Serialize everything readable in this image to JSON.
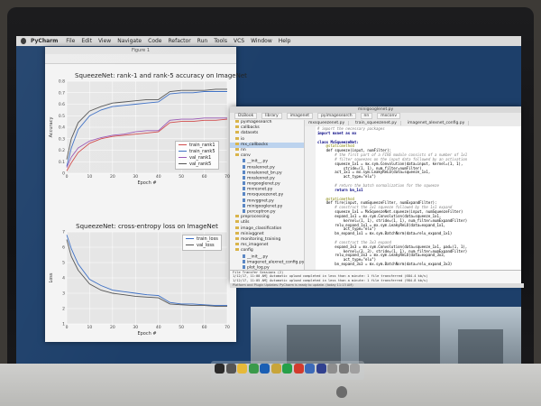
{
  "menubar": {
    "app": "PyCharm",
    "items": [
      "File",
      "Edit",
      "View",
      "Navigate",
      "Code",
      "Refactor",
      "Run",
      "Tools",
      "VCS",
      "Window",
      "Help"
    ]
  },
  "figure_window": {
    "title": "Figure 1"
  },
  "chart_data": [
    {
      "type": "line",
      "title": "SqueezeNet: rank-1 and rank-5 accuracy on ImageNet",
      "xlabel": "Epoch #",
      "ylabel": "Accuracy",
      "xlim": [
        0,
        70
      ],
      "ylim": [
        0.0,
        0.8
      ],
      "x_ticks": [
        0,
        10,
        20,
        30,
        40,
        50,
        60,
        70
      ],
      "y_ticks": [
        0.0,
        0.1,
        0.2,
        0.3,
        0.4,
        0.5,
        0.6,
        0.7,
        0.8
      ],
      "grid": true,
      "legend": "lower-right",
      "x": [
        0,
        2,
        5,
        10,
        15,
        20,
        25,
        30,
        35,
        40,
        45,
        50,
        55,
        60,
        65,
        70
      ],
      "series": [
        {
          "name": "train_rank1",
          "color": "#d14b4b",
          "values": [
            0.02,
            0.09,
            0.18,
            0.26,
            0.3,
            0.32,
            0.33,
            0.34,
            0.35,
            0.36,
            0.44,
            0.45,
            0.45,
            0.46,
            0.46,
            0.47
          ]
        },
        {
          "name": "train_rank5",
          "color": "#3b6ec4",
          "values": [
            0.06,
            0.22,
            0.38,
            0.5,
            0.55,
            0.58,
            0.59,
            0.6,
            0.61,
            0.62,
            0.69,
            0.7,
            0.7,
            0.71,
            0.71,
            0.71
          ]
        },
        {
          "name": "val_rank1",
          "color": "#9a58b5",
          "values": [
            0.05,
            0.14,
            0.22,
            0.28,
            0.31,
            0.33,
            0.34,
            0.36,
            0.37,
            0.37,
            0.46,
            0.47,
            0.47,
            0.48,
            0.48,
            0.48
          ]
        },
        {
          "name": "val_rank5",
          "color": "#555555",
          "values": [
            0.12,
            0.3,
            0.44,
            0.54,
            0.58,
            0.61,
            0.62,
            0.63,
            0.64,
            0.64,
            0.71,
            0.72,
            0.72,
            0.72,
            0.73,
            0.73
          ]
        }
      ]
    },
    {
      "type": "line",
      "title": "SqueezeNet: cross-entropy loss on ImageNet",
      "xlabel": "Epoch #",
      "ylabel": "Loss",
      "xlim": [
        0,
        70
      ],
      "ylim": [
        1.0,
        7.0
      ],
      "x_ticks": [
        0,
        10,
        20,
        30,
        40,
        50,
        60,
        70
      ],
      "y_ticks": [
        1,
        2,
        3,
        4,
        5,
        6,
        7
      ],
      "grid": true,
      "legend": "top-right",
      "x": [
        0,
        2,
        5,
        10,
        15,
        20,
        25,
        30,
        35,
        40,
        45,
        50,
        55,
        60,
        65,
        70
      ],
      "series": [
        {
          "name": "train_loss",
          "color": "#3b6ec4",
          "values": [
            6.8,
            5.9,
            4.9,
            3.9,
            3.5,
            3.2,
            3.1,
            3.0,
            2.9,
            2.85,
            2.4,
            2.3,
            2.3,
            2.25,
            2.2,
            2.2
          ]
        },
        {
          "name": "val_loss",
          "color": "#555555",
          "values": [
            6.5,
            5.4,
            4.5,
            3.6,
            3.2,
            3.0,
            2.9,
            2.8,
            2.75,
            2.7,
            2.3,
            2.25,
            2.2,
            2.2,
            2.15,
            2.15
          ]
        }
      ]
    }
  ],
  "pycharm": {
    "window_title": "minigooglenet.py",
    "nav_tabs": [
      "DLBook",
      "library",
      "imagenet",
      "pyimagesearch",
      "nn",
      "mxconv"
    ],
    "editor_tabs": [
      "mxsqueezenet.py",
      "train_squeezenet.py",
      "imagenet_alexnet_config.py"
    ],
    "project_tree": [
      {
        "label": "pyimagesearch",
        "type": "folder",
        "selected": false
      },
      {
        "label": "callbacks",
        "type": "folder",
        "selected": false
      },
      {
        "label": "datasets",
        "type": "folder",
        "selected": false
      },
      {
        "label": "io",
        "type": "folder",
        "selected": false
      },
      {
        "label": "mx_callbacks",
        "type": "folder",
        "selected": true
      },
      {
        "label": "nn",
        "type": "folder",
        "selected": false
      },
      {
        "label": "conv",
        "type": "folder",
        "selected": false
      },
      {
        "label": "__init__.py",
        "type": "file",
        "selected": false
      },
      {
        "label": "mxalexnet.py",
        "type": "file",
        "selected": false
      },
      {
        "label": "mxalexnet_bn.py",
        "type": "file",
        "selected": false
      },
      {
        "label": "mxalexnet.py",
        "type": "file",
        "selected": false
      },
      {
        "label": "mxgooglenet.py",
        "type": "file",
        "selected": false
      },
      {
        "label": "mxresnet.py",
        "type": "file",
        "selected": false
      },
      {
        "label": "mxsqueezenet.py",
        "type": "file",
        "selected": false
      },
      {
        "label": "mxvggnet.py",
        "type": "file",
        "selected": false
      },
      {
        "label": "minigooglenet.py",
        "type": "file",
        "selected": false
      },
      {
        "label": "perceptron.py",
        "type": "file",
        "selected": false
      },
      {
        "label": "preprocessing",
        "type": "folder",
        "selected": false
      },
      {
        "label": "utils",
        "type": "folder",
        "selected": false
      },
      {
        "label": "image_classification",
        "type": "folder",
        "selected": false
      },
      {
        "label": "minivggnet",
        "type": "folder",
        "selected": false
      },
      {
        "label": "monitoring_training",
        "type": "folder",
        "selected": false
      },
      {
        "label": "ms_imagenet",
        "type": "folder",
        "selected": false
      },
      {
        "label": "config",
        "type": "folder",
        "selected": false
      },
      {
        "label": "__init__.py",
        "type": "file",
        "selected": false
      },
      {
        "label": "imagenet_alexnet_config.py",
        "type": "file",
        "selected": false
      },
      {
        "label": "plot_log.py",
        "type": "file",
        "selected": false
      },
      {
        "label": "plot_learning_rate.py",
        "type": "file",
        "selected": false
      },
      {
        "label": "test_alexnet.py",
        "type": "file",
        "selected": false
      },
      {
        "label": "train_alexnet.py",
        "type": "file",
        "selected": false
      },
      {
        "label": "ms_imagenet_squeezenet",
        "type": "folder",
        "selected": false
      },
      {
        "label": "config",
        "type": "folder",
        "selected": false
      },
      {
        "label": "__init__.py",
        "type": "file",
        "selected": false
      },
      {
        "label": "imagenet_squeezenet_config.py",
        "type": "file",
        "selected": false
      }
    ],
    "code_lines": [
      {
        "kind": "cm",
        "text": "# import the necessary packages"
      },
      {
        "kind": "kw",
        "text": "import mxnet as mx"
      },
      {
        "kind": "plain",
        "text": ""
      },
      {
        "kind": "kw",
        "text": "class MxSqueezeNet:"
      },
      {
        "kind": "dec",
        "text": "    @staticmethod"
      },
      {
        "kind": "plain",
        "text": "    def squeeze(input, numFilter):"
      },
      {
        "kind": "cm",
        "text": "        # the first part of a FIRE module consists of a number of 1x1"
      },
      {
        "kind": "cm",
        "text": "        # filter squeezes on the input data followed by an activation"
      },
      {
        "kind": "plain",
        "text": "        squeeze_1x1 = mx.sym.Convolution(data=input, kernel=(1, 1),"
      },
      {
        "kind": "plain",
        "text": "            stride=(1, 1), num_filter=numFilter)"
      },
      {
        "kind": "plain",
        "text": "        act_1x1 = mx.sym.LeakyReLU(data=squeeze_1x1,"
      },
      {
        "kind": "plain",
        "text": "            act_type=\"elu\")"
      },
      {
        "kind": "plain",
        "text": ""
      },
      {
        "kind": "cm",
        "text": "        # return the batch normalization for the squeeze"
      },
      {
        "kind": "kw",
        "text": "        return bn_1x1"
      },
      {
        "kind": "plain",
        "text": ""
      },
      {
        "kind": "dec",
        "text": "    @staticmethod"
      },
      {
        "kind": "plain",
        "text": "    def fire(input, numSqueezeFilter, numExpandFilter):"
      },
      {
        "kind": "cm",
        "text": "        # construct the 1x1 squeeze followed by the 1x1 expand"
      },
      {
        "kind": "plain",
        "text": "        squeeze_1x1 = MxSqueezeNet.squeeze(input, numSqueezeFilter)"
      },
      {
        "kind": "plain",
        "text": "        expand_1x1 = mx.sym.Convolution(data=squeeze_1x1,"
      },
      {
        "kind": "plain",
        "text": "            kernel=(1, 1), stride=(1, 1), num_filter=numExpandFilter)"
      },
      {
        "kind": "plain",
        "text": "        relu_expand_1x1 = mx.sym.LeakyReLU(data=expand_1x1,"
      },
      {
        "kind": "plain",
        "text": "            act_type=\"elu\")"
      },
      {
        "kind": "plain",
        "text": "        bn_expand_1x1 = mx.sym.BatchNorm(data=relu_expand_1x1)"
      },
      {
        "kind": "plain",
        "text": ""
      },
      {
        "kind": "cm",
        "text": "        # construct the 3x3 expand"
      },
      {
        "kind": "plain",
        "text": "        expand_3x3 = mx.sym.Convolution(data=squeeze_1x1, pad=(1, 1),"
      },
      {
        "kind": "plain",
        "text": "            kernel=(3, 3), stride=(1, 1), num_filter=numExpandFilter)"
      },
      {
        "kind": "plain",
        "text": "        relu_expand_3x3 = mx.sym.LeakyReLU(data=expand_3x3,"
      },
      {
        "kind": "plain",
        "text": "            act_type=\"elu\")"
      },
      {
        "kind": "plain",
        "text": "        bn_expand_3x3 = mx.sym.BatchNorm(data=relu_expand_3x3)"
      },
      {
        "kind": "plain",
        "text": ""
      },
      {
        "kind": "cm",
        "text": "        # the output of the FIRE module is the concatenation of the"
      },
      {
        "kind": "cm",
        "text": "        # batch normalized activations for the 1x1 and 3x3 expands"
      },
      {
        "kind": "cm",
        "text": "        # along the channel dimension"
      },
      {
        "kind": "plain",
        "text": "        output = mx.sym.Concat(bn_expand_1x1, bn_expand_3x3,"
      },
      {
        "kind": "plain",
        "text": "            dim=1)"
      },
      {
        "kind": "plain",
        "text": ""
      },
      {
        "kind": "cm",
        "text": "        # return the output of the FIRE module"
      },
      {
        "kind": "kw",
        "text": "        return output"
      }
    ],
    "run_lines": [
      "File Transfer Sessions (2)",
      "1/12/17, 11:00 AM] Automatic upload completed in less than a minute: 1 file transferred (684.4 kb/s)",
      "1/12/17, 11:05 AM] Automatic upload completed in less than a minute: 1 file transferred (984.8 kb/s)"
    ],
    "status": "Platform and Plugin Updates: PyCharm is ready to update. (today 11:13 AM)"
  },
  "dock": {
    "icon_colors": [
      "#2b2b2b",
      "#555555",
      "#e6b93a",
      "#3a9a4b",
      "#1a5fb4",
      "#c8a53a",
      "#26a04a",
      "#d23b2e",
      "#3c6ab8",
      "#31418f",
      "#8e8e8e",
      "#7a7a7a",
      "#a0a0a0"
    ]
  }
}
